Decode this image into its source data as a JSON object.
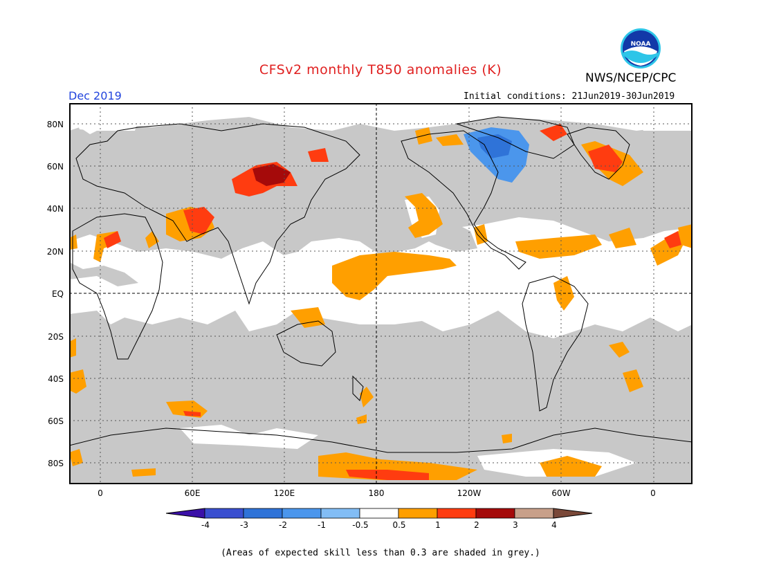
{
  "title": "CFSv2 monthly T850 anomalies (K)",
  "agency": "NWS/NCEP/CPC",
  "logo_text": "NOAA",
  "valid_month": "Dec 2019",
  "initial_conditions": "Initial conditions: 21Jun2019-30Jun2019",
  "lat_labels": [
    "80N",
    "60N",
    "40N",
    "20N",
    "EQ",
    "20S",
    "40S",
    "60S",
    "80S"
  ],
  "lon_labels": [
    "0",
    "60E",
    "120E",
    "180",
    "120W",
    "60W",
    "0"
  ],
  "colorbar": {
    "labels": [
      "-4",
      "-3",
      "-2",
      "-1",
      "-0.5",
      "0.5",
      "1",
      "2",
      "3",
      "4"
    ],
    "colors": [
      "#3b10a8",
      "#3a4fd0",
      "#2f73d8",
      "#4b96ec",
      "#82bdf5",
      "#ffffff",
      "#ff9f00",
      "#ff3c10",
      "#a50a0a",
      "#c8a08a",
      "#7a4838"
    ]
  },
  "colors": {
    "skill_grey": "#c8c8c8",
    "title_red": "#e02020",
    "month_blue": "#2244dd"
  },
  "footnote": "(Areas of expected skill less than 0.3 are shaded in grey.)"
}
